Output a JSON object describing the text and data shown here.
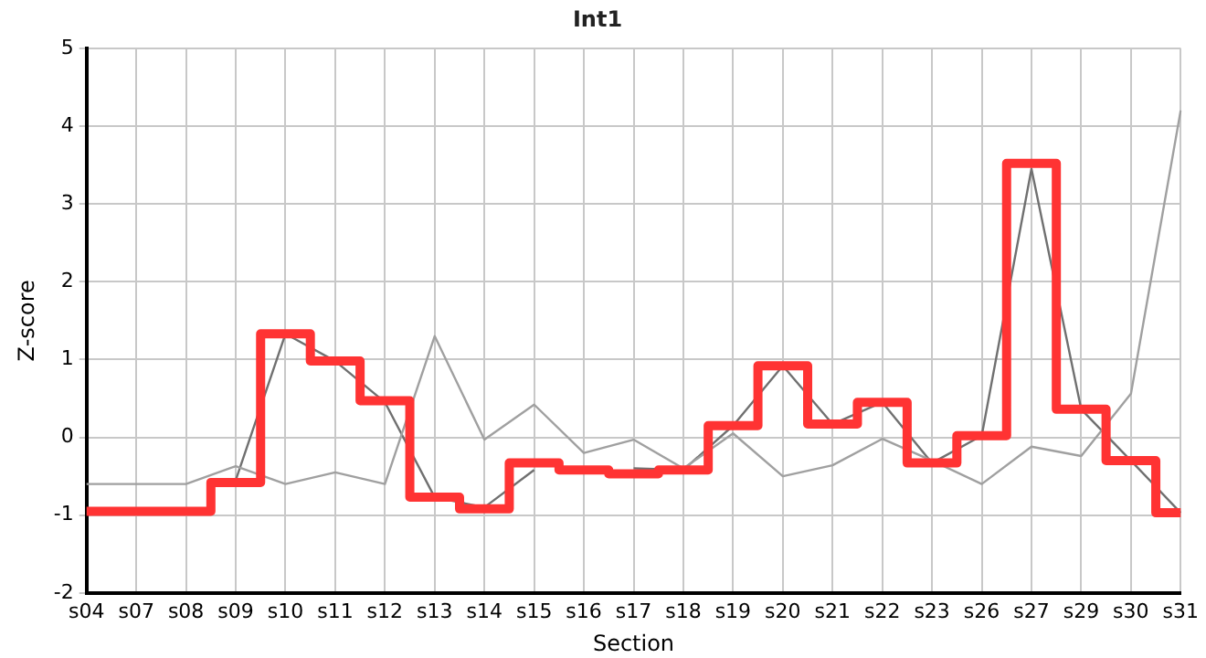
{
  "chart_data": {
    "type": "line",
    "title": "Int1",
    "xlabel": "Section",
    "ylabel": "Z-score",
    "categories": [
      "s04",
      "s07",
      "s08",
      "s09",
      "s10",
      "s11",
      "s12",
      "s13",
      "s14",
      "s15",
      "s16",
      "s17",
      "s18",
      "s19",
      "s20",
      "s21",
      "s22",
      "s23",
      "s26",
      "s27",
      "s29",
      "s30",
      "s31"
    ],
    "ylim": [
      -2,
      5
    ],
    "yticks": [
      -2,
      -1,
      0,
      1,
      2,
      3,
      4,
      5
    ],
    "grid": true,
    "legend": false,
    "series": [
      {
        "type": "line",
        "color": "#a0a0a0",
        "values": [
          -0.6,
          -0.6,
          -0.6,
          -0.37,
          -0.6,
          -0.45,
          -0.6,
          1.3,
          -0.03,
          0.42,
          -0.2,
          -0.03,
          -0.4,
          0.05,
          -0.5,
          -0.36,
          -0.02,
          -0.3,
          -0.6,
          -0.12,
          -0.24,
          0.56,
          4.2
        ]
      },
      {
        "type": "line",
        "color": "#707070",
        "values": [
          null,
          null,
          null,
          -0.55,
          1.33,
          0.98,
          0.45,
          -0.77,
          -0.9,
          -0.42,
          null,
          -0.4,
          -0.42,
          0.15,
          0.92,
          0.17,
          0.45,
          -0.33,
          0.02,
          3.45,
          0.36,
          -0.3,
          -0.97
        ]
      },
      {
        "type": "step",
        "color": "#ff3333",
        "values": [
          -0.95,
          -0.95,
          -0.95,
          -0.58,
          1.33,
          0.98,
          0.47,
          -0.77,
          -0.92,
          -0.33,
          -0.42,
          -0.47,
          -0.42,
          0.15,
          0.92,
          0.17,
          0.45,
          -0.33,
          0.02,
          3.52,
          0.36,
          -0.3,
          -0.97
        ]
      }
    ]
  }
}
